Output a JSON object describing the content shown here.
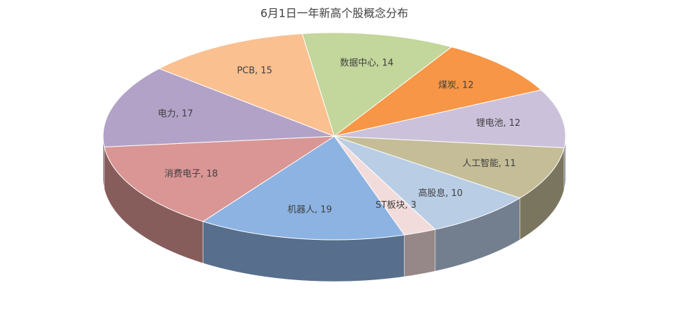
{
  "chart_data": {
    "type": "pie",
    "title": "6月1日一年新高个股概念分布",
    "categories": [
      "数据中心",
      "煤炭",
      "锂电池",
      "人工智能",
      "高股息",
      "ST板块",
      "机器人",
      "消费电子",
      "电力",
      "PCB"
    ],
    "values": [
      14,
      12,
      12,
      11,
      10,
      3,
      19,
      18,
      17,
      15
    ],
    "value_labels": [
      "数据中心, 14",
      "煤炭, 12",
      "锂电池, 12",
      "人工智能, 11",
      "高股息, 10",
      "ST板块, 3",
      "机器人, 19",
      "消费电子, 18",
      "电力, 17",
      "PCB, 15"
    ],
    "colors": [
      "#c3d69b",
      "#f79646",
      "#ccc1da",
      "#c4bd97",
      "#b9cde5",
      "#f2dcdb",
      "#8db3e2",
      "#d99694",
      "#b3a2c7",
      "#fac090"
    ]
  }
}
